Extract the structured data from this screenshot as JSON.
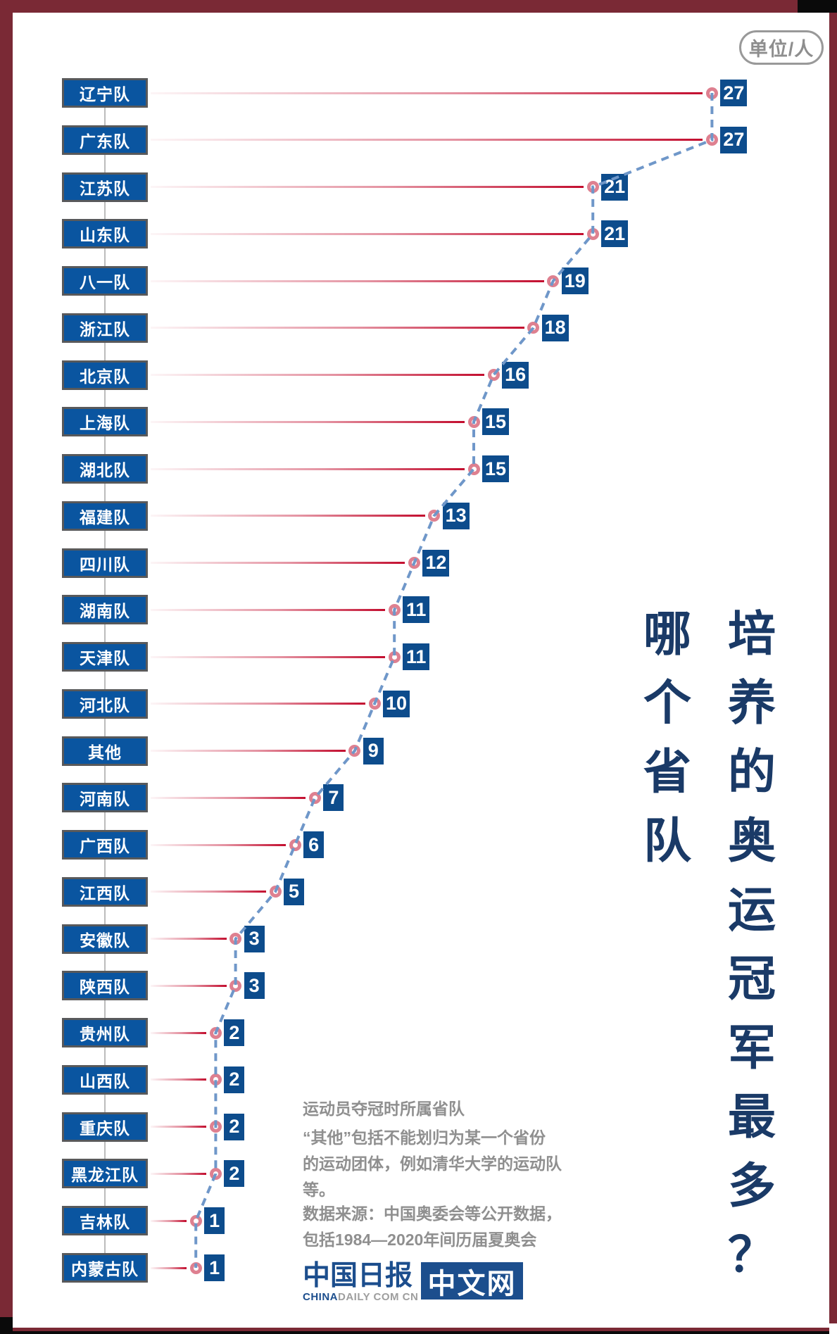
{
  "badge": {
    "label": "单位/人"
  },
  "title": {
    "full": "哪个省队培养的奥运冠军最多？",
    "column_left": "哪个省队",
    "column_right": "培养的奥运冠军最多？"
  },
  "chart_data": {
    "type": "bar",
    "subtype": "lollipop",
    "orientation": "horizontal",
    "title": "哪个省队培养的奥运冠军最多？",
    "unit_label": "单位/人",
    "categories": [
      "辽宁队",
      "广东队",
      "江苏队",
      "山东队",
      "八一队",
      "浙江队",
      "北京队",
      "上海队",
      "湖北队",
      "福建队",
      "四川队",
      "湖南队",
      "天津队",
      "河北队",
      "其他",
      "河南队",
      "广西队",
      "江西队",
      "安徽队",
      "陕西队",
      "贵州队",
      "山西队",
      "重庆队",
      "黑龙江队",
      "吉林队",
      "内蒙古队"
    ],
    "values": [
      27,
      27,
      21,
      21,
      19,
      18,
      16,
      15,
      15,
      13,
      12,
      11,
      11,
      10,
      9,
      7,
      6,
      5,
      3,
      3,
      2,
      2,
      2,
      2,
      1,
      1
    ],
    "xlim": [
      0,
      28
    ],
    "grid": false,
    "value_labels": true,
    "legend": "none",
    "connector": "dashed line through points, top to bottom"
  },
  "notes": {
    "line1": "运动员夺冠时所属省队",
    "line2": "“其他”包括不能划归为某一个省份\n的运动团体，例如清华大学的运动队\n等。",
    "line3": "数据来源：中国奥委会等公开数据，\n包括1984—2020年间历届夏奥会"
  },
  "logo": {
    "cn_name": "中国日报",
    "en_strong": "CHINA",
    "en_rest": "DAILY COM CN",
    "site_badge": "中文网"
  },
  "colors": {
    "frame_maroon": "#7a2935",
    "frame_black": "#0a0a0a",
    "label_box_blue": "#0a55a0",
    "label_box_border": "#58595b",
    "value_box_navy": "#0d4c8c",
    "dot_pink": "#de8090",
    "line_red": "#c30e2f",
    "dash_blue": "#6f97c9",
    "connector_gray": "#bcbcbc",
    "note_gray": "#8f8f8f",
    "title_navy": "#1a3a67",
    "badge_gray": "#999999",
    "logo_navy": "#1c4e8d"
  }
}
